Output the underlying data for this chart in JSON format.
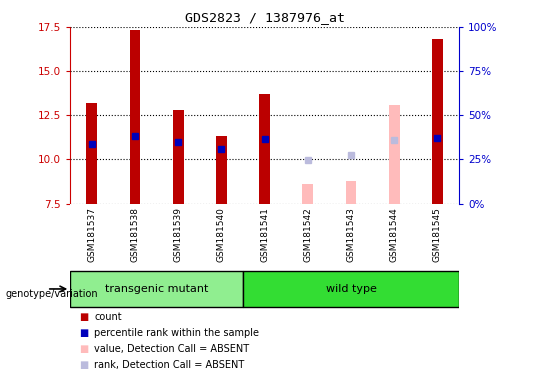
{
  "title": "GDS2823 / 1387976_at",
  "samples": [
    "GSM181537",
    "GSM181538",
    "GSM181539",
    "GSM181540",
    "GSM181541",
    "GSM181542",
    "GSM181543",
    "GSM181544",
    "GSM181545"
  ],
  "ylim_left": [
    7.5,
    17.5
  ],
  "ylim_right": [
    0,
    100
  ],
  "yticks_left": [
    7.5,
    10.0,
    12.5,
    15.0,
    17.5
  ],
  "yticks_right": [
    0,
    25,
    50,
    75,
    100
  ],
  "count_values": [
    13.2,
    17.3,
    12.8,
    11.35,
    13.7,
    null,
    null,
    null,
    16.8
  ],
  "rank_values": [
    10.85,
    11.35,
    11.0,
    10.6,
    11.15,
    null,
    null,
    null,
    11.2
  ],
  "absent_value_values": [
    null,
    null,
    null,
    null,
    null,
    8.6,
    8.75,
    13.1,
    null
  ],
  "absent_rank_values": [
    null,
    null,
    null,
    null,
    null,
    9.95,
    10.25,
    11.1,
    null
  ],
  "transgenic_indices": [
    0,
    1,
    2,
    3
  ],
  "wildtype_indices": [
    4,
    5,
    6,
    7,
    8
  ],
  "group_labels": [
    "transgenic mutant",
    "wild type"
  ],
  "bar_width": 0.25,
  "count_color": "#BB0000",
  "rank_color": "#0000BB",
  "absent_value_color": "#FFBBBB",
  "absent_rank_color": "#BBBBDD",
  "transgenic_bg": "#90EE90",
  "wildtype_bg": "#33DD33",
  "axis_bg": "#CCCCCC",
  "plot_bg": "#FFFFFF",
  "ytick_label_color_left": "#CC0000",
  "ytick_label_color_right": "#0000CC"
}
